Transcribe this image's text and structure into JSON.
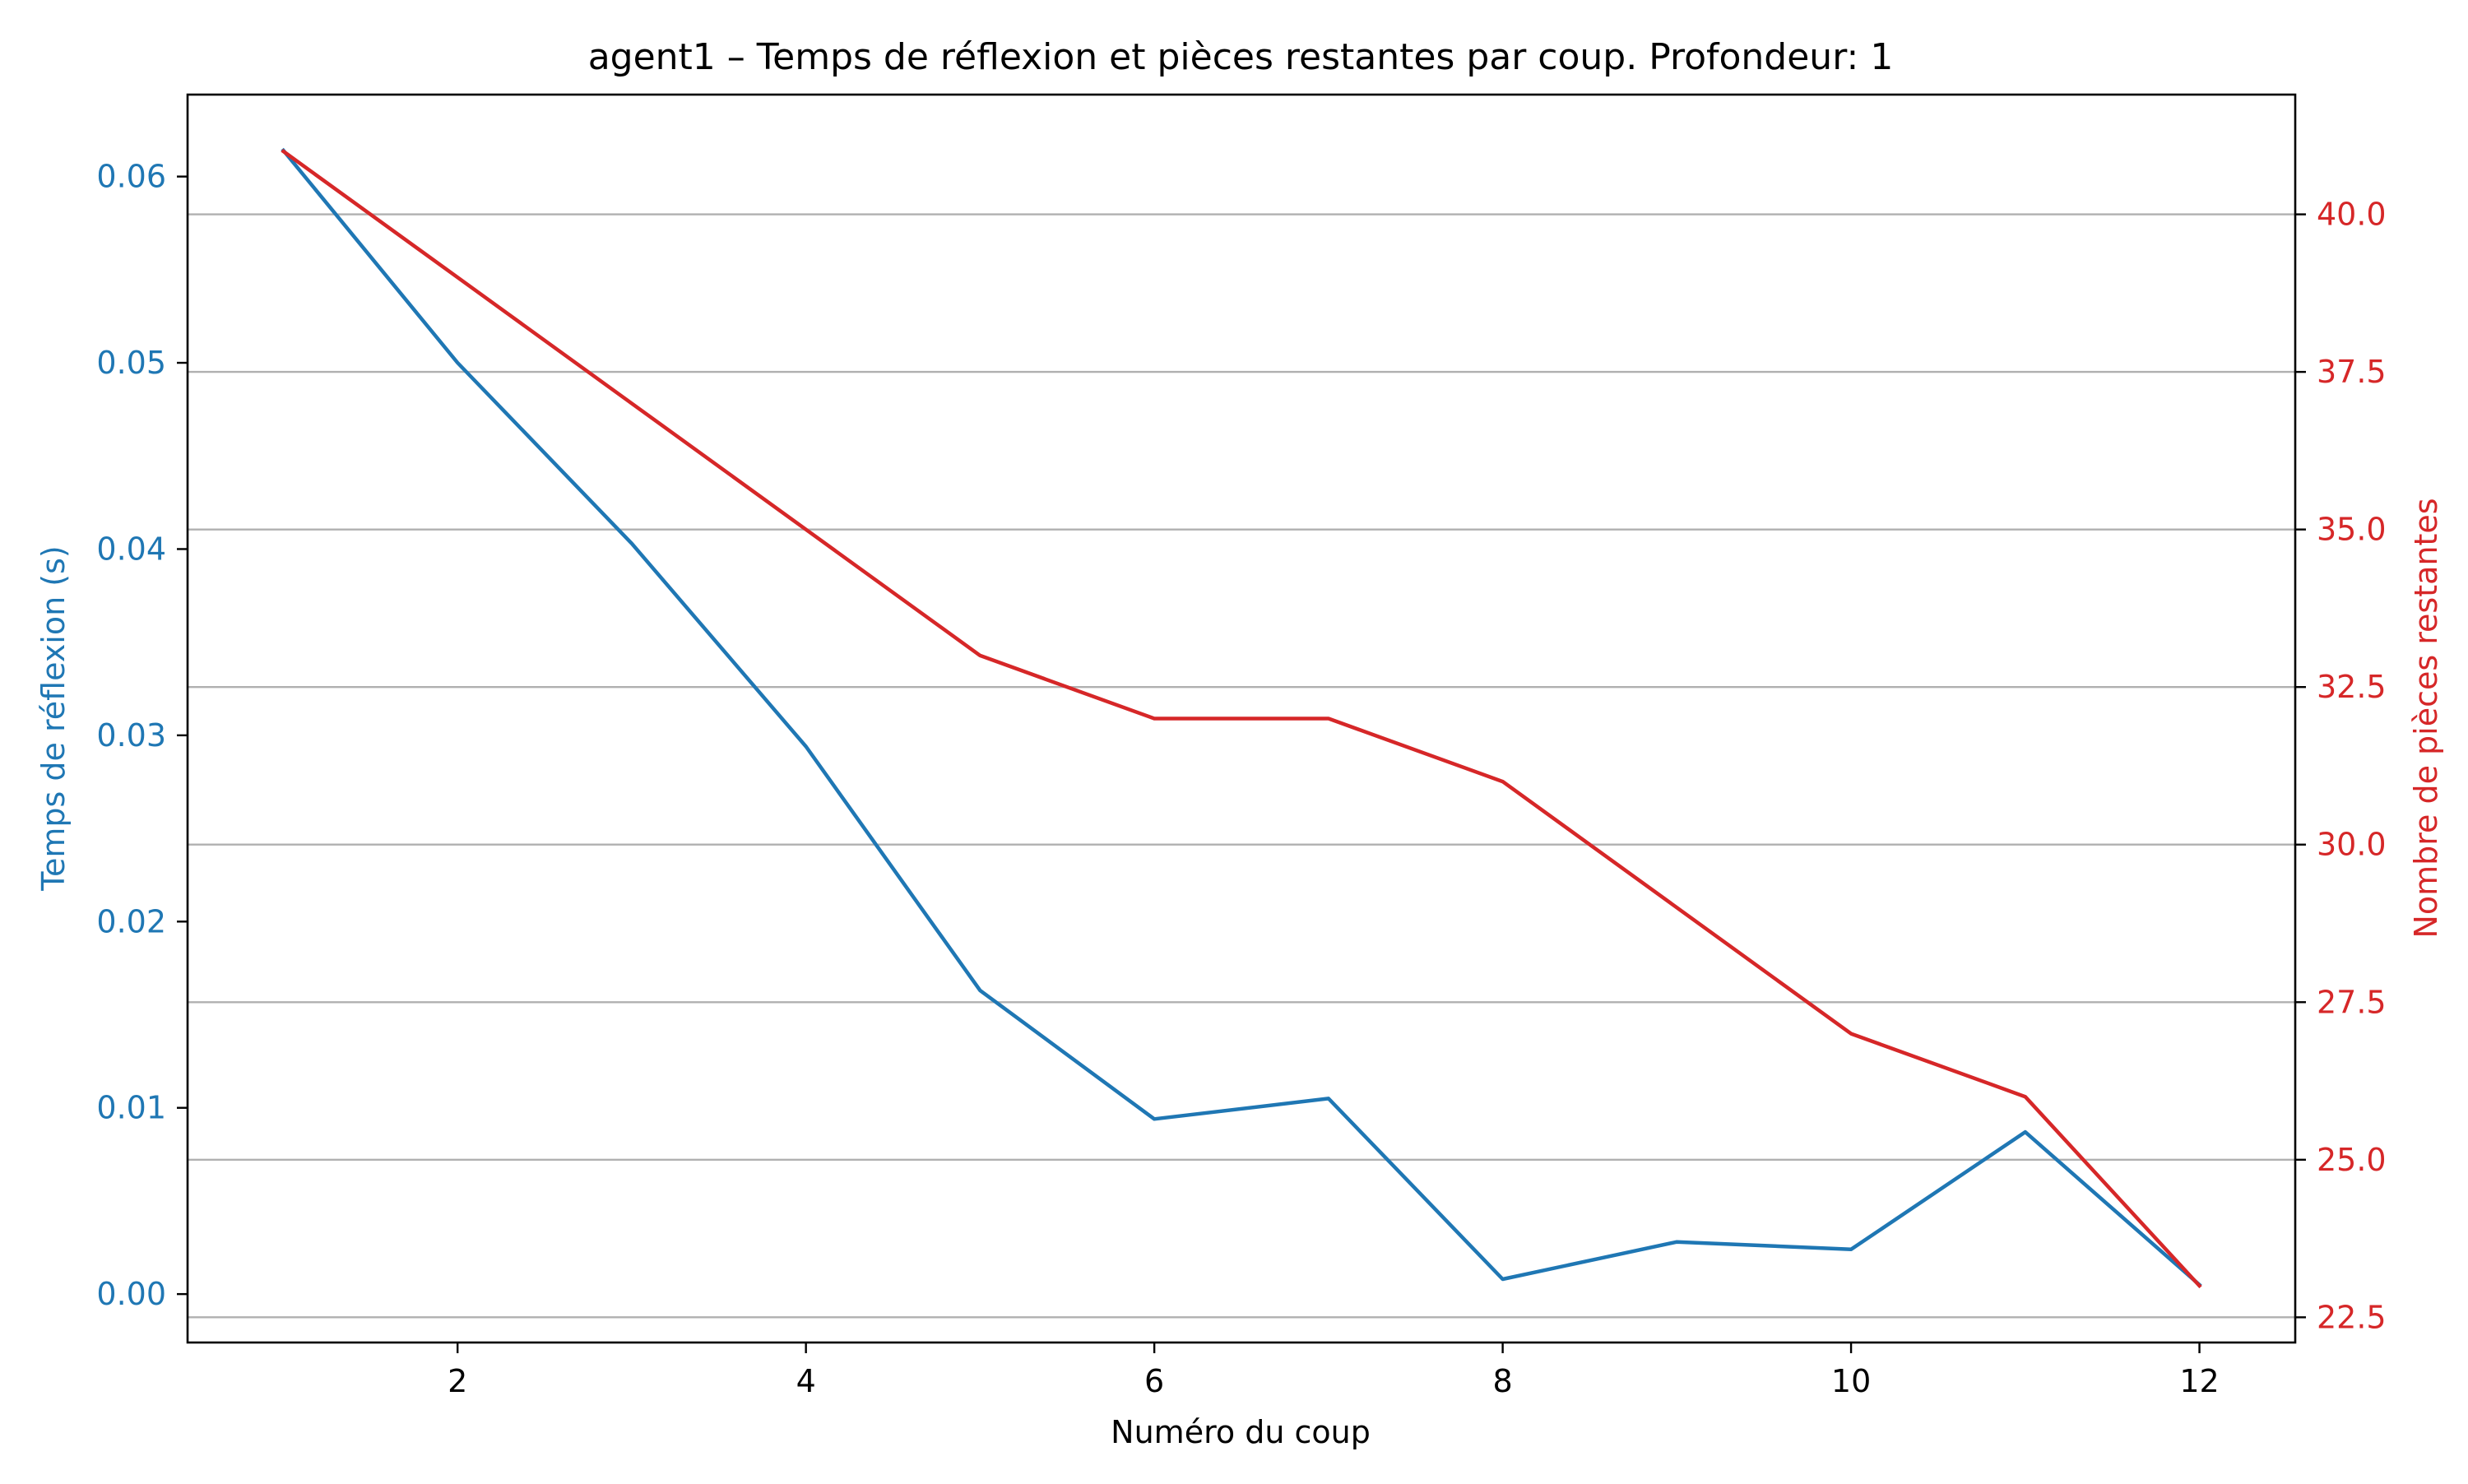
{
  "chart_data": {
    "type": "line",
    "title": "agent1 – Temps de réflexion et pièces restantes par coup. Profondeur: 1",
    "xlabel": "Numéro du coup",
    "ylabel_left": "Temps de réflexion (s)",
    "ylabel_right": "Nombre de pièces restantes",
    "x": [
      1,
      2,
      3,
      4,
      5,
      6,
      7,
      8,
      9,
      10,
      11,
      12
    ],
    "xlim": [
      0.45,
      12.55
    ],
    "xticks": [
      2,
      4,
      6,
      8,
      10,
      12
    ],
    "xtick_labels": [
      "2",
      "4",
      "6",
      "8",
      "10",
      "12"
    ],
    "ylim_left": [
      -0.0026,
      0.0644
    ],
    "yticks_left": [
      0.0,
      0.01,
      0.02,
      0.03,
      0.04,
      0.05,
      0.06
    ],
    "ytick_labels_left": [
      "0.00",
      "0.01",
      "0.02",
      "0.03",
      "0.04",
      "0.05",
      "0.06"
    ],
    "ylim_right": [
      22.1,
      41.9
    ],
    "yticks_right": [
      22.5,
      25.0,
      27.5,
      30.0,
      32.5,
      35.0,
      37.5,
      40.0
    ],
    "ytick_labels_right": [
      "22.5",
      "25.0",
      "27.5",
      "30.0",
      "32.5",
      "35.0",
      "37.5",
      "40.0"
    ],
    "grid": "horizontal lines at right-axis ticks",
    "series": [
      {
        "axis": "left",
        "color": "#1f77b4",
        "values": [
          0.0614,
          0.05,
          0.0403,
          0.0294,
          0.0163,
          0.0094,
          0.0105,
          0.0008,
          0.0028,
          0.0024,
          0.0087,
          0.0005
        ]
      },
      {
        "axis": "right",
        "color": "#d62728",
        "values": [
          41,
          39,
          37,
          35,
          33,
          32,
          32,
          31,
          29,
          27,
          26,
          23
        ]
      }
    ]
  }
}
